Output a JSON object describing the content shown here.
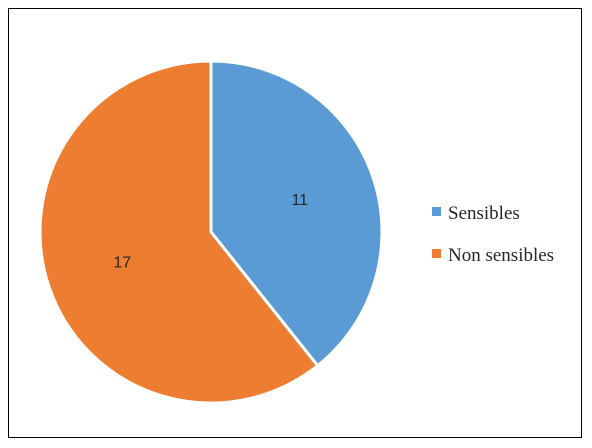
{
  "chart_data": {
    "type": "pie",
    "categories": [
      "Sensibles",
      "Non sensibles"
    ],
    "values": [
      11,
      17
    ],
    "colors": [
      "#5b9bd5",
      "#ed7d31"
    ],
    "title": "",
    "legend_position": "right",
    "data_labels": [
      "11",
      "17"
    ]
  }
}
